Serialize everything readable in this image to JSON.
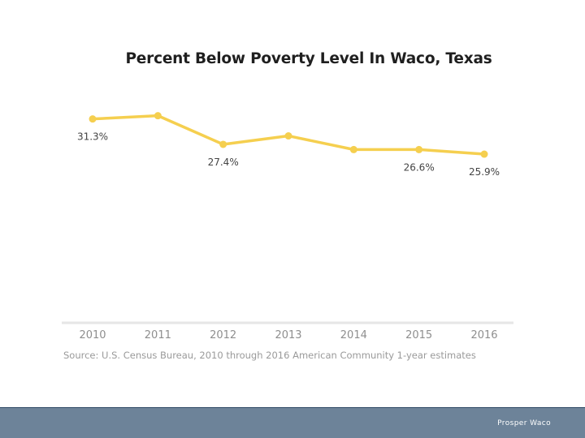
{
  "chart_data": {
    "type": "line",
    "title": "Percent Below Poverty Level In Waco, Texas",
    "categories": [
      "2010",
      "2011",
      "2012",
      "2013",
      "2014",
      "2015",
      "2016"
    ],
    "values": [
      31.3,
      31.8,
      27.4,
      28.7,
      26.6,
      26.6,
      25.9
    ],
    "data_labels": [
      "31.3%",
      "",
      "27.4%",
      "",
      "",
      "26.6%",
      "25.9%"
    ],
    "ylim": [
      0,
      33
    ],
    "xlabel": "",
    "ylabel": "",
    "grid": false,
    "line_color": "#f5cf4f",
    "axis_color": "#e6e6e6",
    "source": "Source: U.S. Census Bureau, 2010 through 2016 American Community 1-year estimates"
  },
  "footer": {
    "text": "Prosper Waco",
    "color": "#6d8399"
  }
}
